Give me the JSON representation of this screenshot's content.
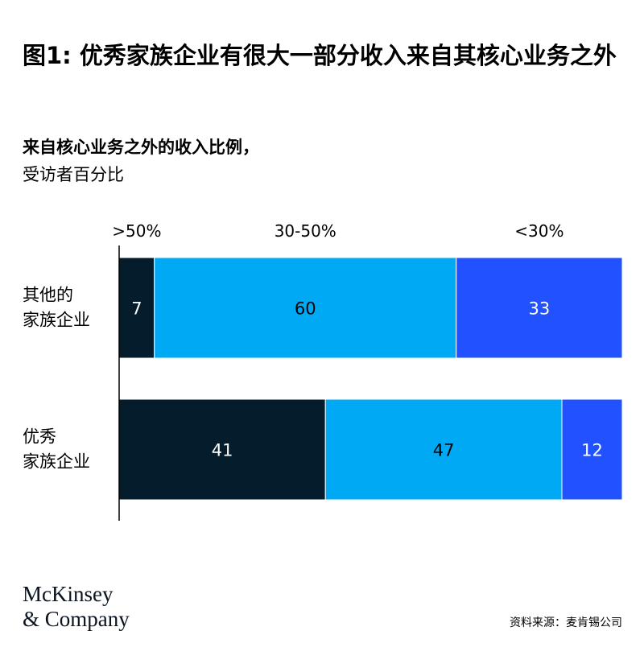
{
  "header": {
    "title": "图1: 优秀家族企业有很大一部分收入来自其核心业务之外",
    "subtitle": "来自核心业务之外的收入比例，",
    "subtitle_unit": "受访者百分比"
  },
  "chart_data": {
    "type": "bar",
    "orientation": "horizontal",
    "stacked": true,
    "title": "来自核心业务之外的收入比例，",
    "subtitle": "受访者百分比",
    "categories": [
      [
        "其他的",
        "家族企业"
      ],
      [
        "优秀",
        "家族企业"
      ]
    ],
    "series": [
      {
        "name": ">50%",
        "values": [
          7,
          41
        ],
        "color": "#051c2c"
      },
      {
        "name": "30-50%",
        "values": [
          60,
          47
        ],
        "color": "#00a9f4"
      },
      {
        "name": "<30%",
        "values": [
          33,
          12
        ],
        "color": "#2251ff"
      }
    ],
    "xlim": [
      0,
      100
    ],
    "data_labels": true,
    "legend_placement": "top, above segments"
  },
  "footer": {
    "logo_line1": "McKinsey",
    "logo_line2": "& Company",
    "source": "资料来源：麦肯锡公司"
  }
}
